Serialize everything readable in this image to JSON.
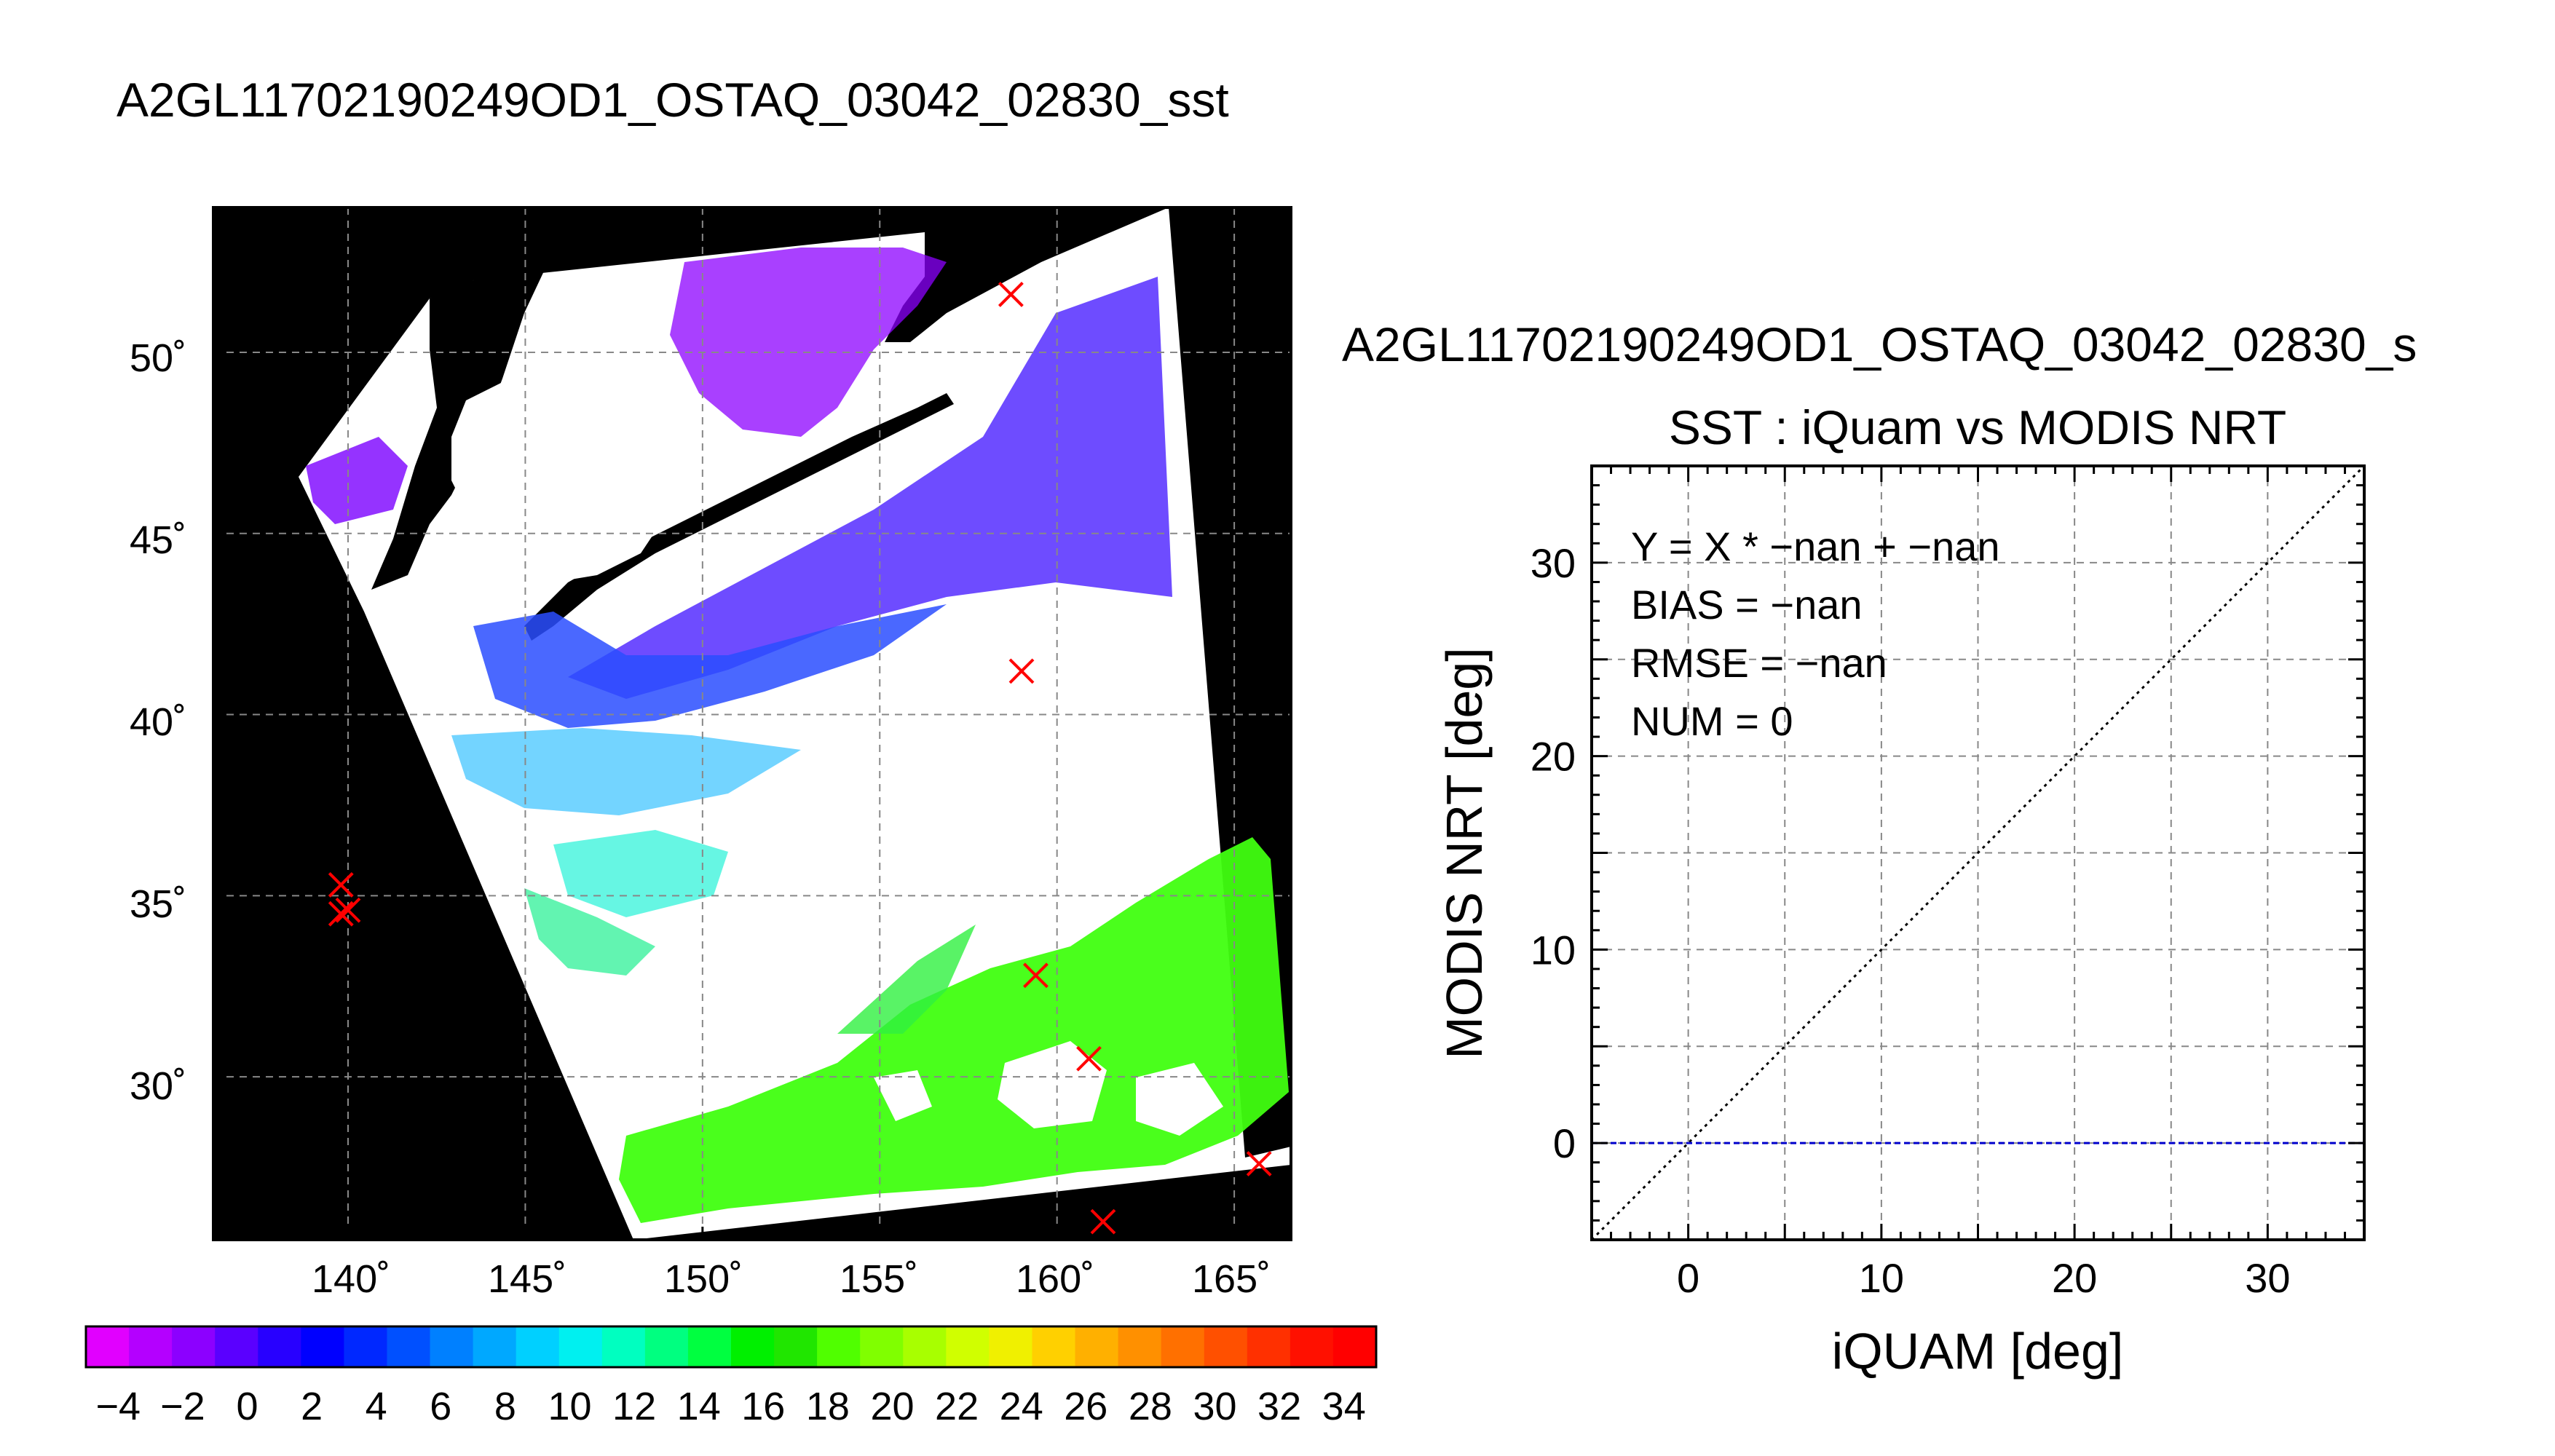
{
  "page_title": "A2GL11702190249OD1_OSTAQ_03042_02830_sst",
  "map": {
    "lat_ticks": [
      "50˚",
      "45˚",
      "40˚",
      "35˚",
      "30˚"
    ],
    "lon_ticks": [
      "140˚",
      "145˚",
      "150˚",
      "155˚",
      "160˚",
      "165˚"
    ],
    "lat_range": [
      25.5,
      54
    ],
    "lon_range": [
      136.2,
      166.6
    ],
    "iquam_markers": [
      {
        "lon": 158.7,
        "lat": 51.6
      },
      {
        "lon": 159.0,
        "lat": 41.2
      },
      {
        "lon": 139.8,
        "lat": 35.3
      },
      {
        "lon": 140.0,
        "lat": 34.6
      },
      {
        "lon": 139.8,
        "lat": 34.5
      },
      {
        "lon": 159.4,
        "lat": 32.8
      },
      {
        "lon": 160.9,
        "lat": 30.5
      },
      {
        "lon": 165.7,
        "lat": 27.6
      },
      {
        "lon": 161.3,
        "lat": 26.0
      }
    ],
    "colors": {
      "land": "#000000",
      "cloud": "#ffffff",
      "marker": "#ff0000",
      "grid": "#888888"
    }
  },
  "colorbar": {
    "labels": [
      "−4",
      "−2",
      "0",
      "2",
      "4",
      "6",
      "8",
      "10",
      "12",
      "14",
      "16",
      "18",
      "20",
      "22",
      "24",
      "26",
      "28",
      "30",
      "32",
      "34"
    ],
    "range": [
      -5,
      35
    ],
    "colors": [
      "#e100ff",
      "#b400ff",
      "#8c00ff",
      "#5a00ff",
      "#2800ff",
      "#0000ff",
      "#0028ff",
      "#0050ff",
      "#0080ff",
      "#00a8ff",
      "#00d0ff",
      "#00f0f0",
      "#00ffc0",
      "#00ff80",
      "#00ff40",
      "#00f000",
      "#20e600",
      "#50ff00",
      "#80ff00",
      "#a8ff00",
      "#d0ff00",
      "#f0f000",
      "#ffd000",
      "#ffb000",
      "#ff9000",
      "#ff7000",
      "#ff5000",
      "#ff3000",
      "#ff1000",
      "#ff0000"
    ]
  },
  "scatter": {
    "title_line1": "A2GL11702190249OD1_OSTAQ_03042_02830_s",
    "title_line2": "SST : iQuam vs MODIS NRT",
    "stats": [
      "Y = X * −nan + −nan",
      "BIAS = −nan",
      "RMSE = −nan",
      "NUM = 0"
    ]
  },
  "chart_data": {
    "type": "scatter",
    "title": "SST : iQuam vs MODIS NRT",
    "xlabel": "iQUAM [deg]",
    "ylabel": "MODIS NRT [deg]",
    "xlim": [
      -5,
      35
    ],
    "ylim": [
      -5,
      35
    ],
    "xticks": [
      "0",
      "10",
      "20",
      "30"
    ],
    "yticks": [
      "0",
      "10",
      "20",
      "30"
    ],
    "grid": true,
    "points": [],
    "lines": [
      {
        "x": [
          -5,
          35
        ],
        "y": [
          -5,
          35
        ],
        "style": "dotted",
        "color": "#000000"
      },
      {
        "x": [
          -5,
          35
        ],
        "y": [
          0,
          0
        ],
        "style": "dashed",
        "color": "#0000cc"
      }
    ]
  }
}
